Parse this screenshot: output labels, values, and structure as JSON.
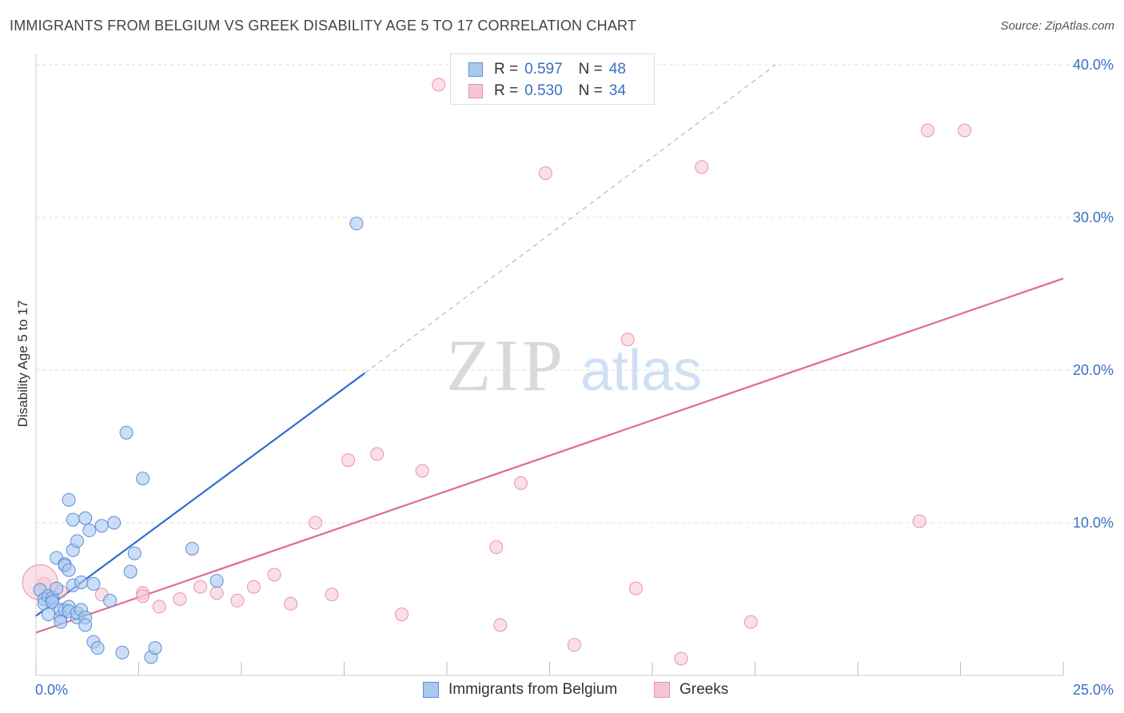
{
  "title": "IMMIGRANTS FROM BELGIUM VS GREEK DISABILITY AGE 5 TO 17 CORRELATION CHART",
  "source": "Source: ZipAtlas.com",
  "watermark": {
    "zip": "ZIP",
    "atlas": "atlas"
  },
  "legend": {
    "r_label": "R =",
    "n_label": "N =",
    "rows": [
      {
        "r": "0.597",
        "n": "48"
      },
      {
        "r": "0.530",
        "n": "34"
      }
    ]
  },
  "colors": {
    "belgium_fill": "#a9c8f0",
    "belgium_stroke": "#5b8fd6",
    "belgium_line": "#2e6fcc",
    "greek_fill": "#f7c4d3",
    "greek_stroke": "#e792ad",
    "greek_line": "#e06a93",
    "grid": "#dddddd",
    "tick_text": "#3a70c4"
  },
  "chart_data": {
    "type": "scatter",
    "title": "IMMIGRANTS FROM BELGIUM VS GREEK DISABILITY AGE 5 TO 17 CORRELATION CHART",
    "xlabel": "",
    "ylabel": "Disability Age 5 to 17",
    "xlim": [
      0,
      25
    ],
    "ylim": [
      0,
      40
    ],
    "x_tick_labels": [
      "0.0%",
      "25.0%"
    ],
    "y_ticks": [
      10,
      20,
      30,
      40
    ],
    "y_tick_labels": [
      "10.0%",
      "20.0%",
      "30.0%",
      "40.0%"
    ],
    "grid": true,
    "legend_placement": "bottom-center",
    "series": [
      {
        "name": "Immigrants from Belgium",
        "r": 0.597,
        "n": 48,
        "points": [
          [
            0.1,
            5.6
          ],
          [
            0.2,
            5.0
          ],
          [
            0.2,
            4.7
          ],
          [
            0.3,
            5.2
          ],
          [
            0.3,
            4.0
          ],
          [
            0.4,
            4.9
          ],
          [
            0.4,
            5.1
          ],
          [
            0.4,
            4.8
          ],
          [
            0.5,
            5.7
          ],
          [
            0.5,
            7.7
          ],
          [
            0.6,
            3.8
          ],
          [
            0.6,
            4.3
          ],
          [
            0.6,
            3.5
          ],
          [
            0.7,
            4.3
          ],
          [
            0.7,
            7.3
          ],
          [
            0.7,
            7.2
          ],
          [
            0.8,
            4.5
          ],
          [
            0.8,
            6.9
          ],
          [
            0.8,
            11.5
          ],
          [
            0.8,
            4.2
          ],
          [
            0.9,
            5.9
          ],
          [
            0.9,
            10.2
          ],
          [
            0.9,
            8.2
          ],
          [
            1.0,
            3.8
          ],
          [
            1.0,
            8.8
          ],
          [
            1.0,
            4.1
          ],
          [
            1.1,
            4.3
          ],
          [
            1.1,
            6.1
          ],
          [
            1.2,
            10.3
          ],
          [
            1.2,
            3.8
          ],
          [
            1.2,
            3.3
          ],
          [
            1.3,
            9.5
          ],
          [
            1.4,
            2.2
          ],
          [
            1.4,
            6.0
          ],
          [
            1.5,
            1.8
          ],
          [
            1.6,
            9.8
          ],
          [
            1.8,
            4.9
          ],
          [
            1.9,
            10.0
          ],
          [
            2.1,
            1.5
          ],
          [
            2.2,
            15.9
          ],
          [
            2.3,
            6.8
          ],
          [
            2.4,
            8.0
          ],
          [
            2.6,
            12.9
          ],
          [
            2.8,
            1.2
          ],
          [
            2.9,
            1.8
          ],
          [
            3.8,
            8.3
          ],
          [
            4.4,
            6.2
          ],
          [
            7.8,
            29.6
          ]
        ],
        "trend": {
          "x0": 0,
          "y0": 3.9,
          "x1": 8.0,
          "y1": 19.8,
          "dashed_to": [
            18.0,
            40.0
          ]
        }
      },
      {
        "name": "Greeks",
        "r": 0.53,
        "n": 34,
        "points": [
          [
            0.2,
            6.0
          ],
          [
            0.6,
            5.5
          ],
          [
            1.6,
            5.3
          ],
          [
            2.6,
            5.4
          ],
          [
            2.6,
            5.2
          ],
          [
            3.0,
            4.5
          ],
          [
            3.5,
            5.0
          ],
          [
            4.0,
            5.8
          ],
          [
            4.4,
            5.4
          ],
          [
            4.9,
            4.9
          ],
          [
            5.3,
            5.8
          ],
          [
            5.8,
            6.6
          ],
          [
            6.2,
            4.7
          ],
          [
            6.8,
            10.0
          ],
          [
            7.2,
            5.3
          ],
          [
            7.6,
            14.1
          ],
          [
            8.3,
            14.5
          ],
          [
            8.9,
            4.0
          ],
          [
            9.4,
            13.4
          ],
          [
            9.8,
            38.7
          ],
          [
            11.2,
            8.4
          ],
          [
            11.3,
            3.3
          ],
          [
            11.8,
            12.6
          ],
          [
            12.4,
            32.9
          ],
          [
            13.1,
            2.0
          ],
          [
            14.6,
            5.7
          ],
          [
            14.4,
            22.0
          ],
          [
            15.7,
            1.1
          ],
          [
            16.2,
            33.3
          ],
          [
            17.4,
            3.5
          ],
          [
            21.5,
            10.1
          ],
          [
            21.7,
            35.7
          ],
          [
            22.6,
            35.7
          ],
          [
            0.1,
            6.1
          ]
        ],
        "trend": {
          "x0": 0,
          "y0": 2.8,
          "x1": 25,
          "y1": 26.0
        }
      }
    ]
  }
}
